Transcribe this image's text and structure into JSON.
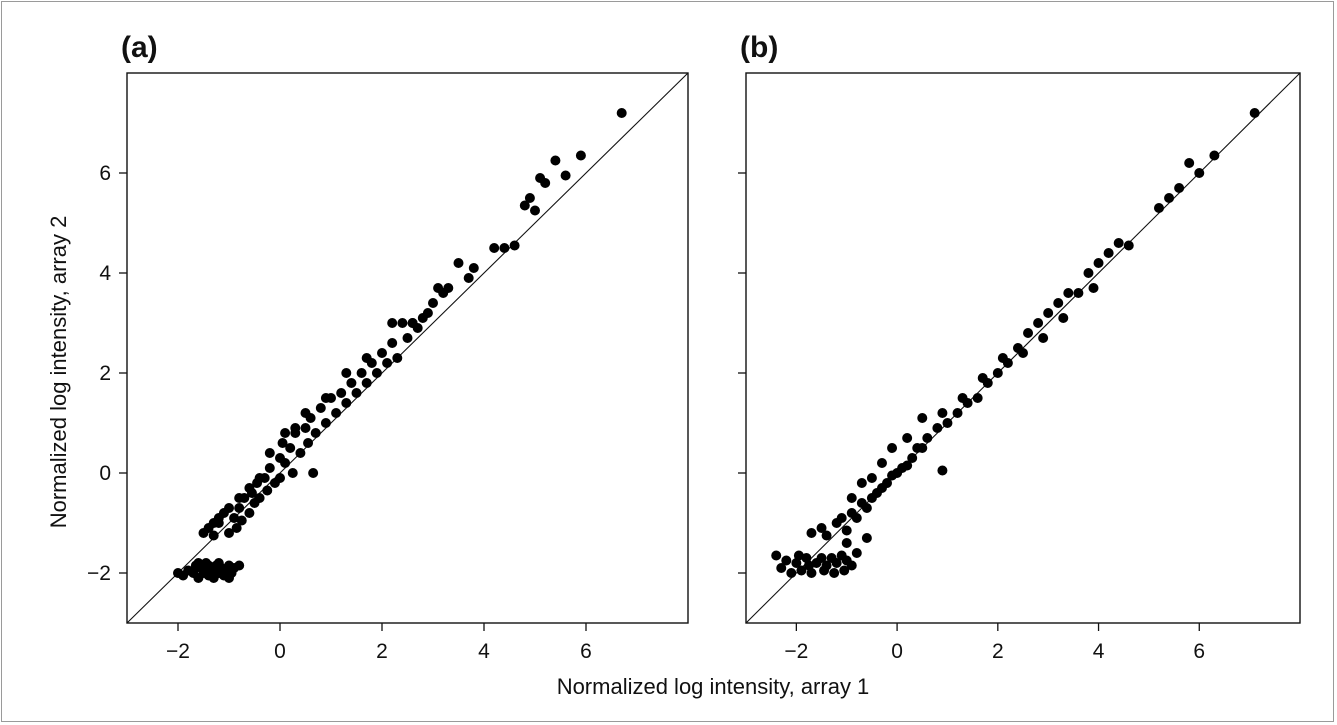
{
  "figure": {
    "xlabel": "Normalized log intensity, array 1",
    "ylabel": "Normalized log intensity, array 2"
  },
  "chart_data": [
    {
      "type": "scatter",
      "panel_label": "(a)",
      "xlim": [
        -3,
        8
      ],
      "ylim": [
        -3,
        8
      ],
      "xticks": [
        -2,
        0,
        2,
        4,
        6
      ],
      "yticks": [
        -2,
        0,
        2,
        4,
        6
      ],
      "xtick_labels": [
        "−2",
        "0",
        "2",
        "4",
        "6"
      ],
      "ytick_labels": [
        "−2",
        "0",
        "2",
        "4",
        "6"
      ],
      "show_x_tick_labels": true,
      "show_y_tick_labels": true,
      "identity_line": true,
      "grid": false,
      "points": [
        [
          -2.0,
          -2.0
        ],
        [
          -1.9,
          -2.05
        ],
        [
          -1.8,
          -1.95
        ],
        [
          -1.7,
          -2.0
        ],
        [
          -1.65,
          -1.85
        ],
        [
          -1.6,
          -2.1
        ],
        [
          -1.55,
          -1.9
        ],
        [
          -1.5,
          -2.0
        ],
        [
          -1.45,
          -1.8
        ],
        [
          -1.4,
          -2.05
        ],
        [
          -1.35,
          -1.95
        ],
        [
          -1.3,
          -2.1
        ],
        [
          -1.25,
          -1.85
        ],
        [
          -1.2,
          -2.0
        ],
        [
          -1.15,
          -1.9
        ],
        [
          -1.1,
          -2.05
        ],
        [
          -1.05,
          -1.95
        ],
        [
          -1.0,
          -1.85
        ],
        [
          -0.95,
          -2.0
        ],
        [
          -0.9,
          -1.9
        ],
        [
          -0.8,
          -1.85
        ],
        [
          -1.6,
          -1.8
        ],
        [
          -1.4,
          -1.85
        ],
        [
          -1.2,
          -1.8
        ],
        [
          -1.0,
          -2.1
        ],
        [
          -1.5,
          -1.2
        ],
        [
          -1.4,
          -1.1
        ],
        [
          -1.3,
          -1.25
        ],
        [
          -1.2,
          -1.0
        ],
        [
          -1.1,
          -0.8
        ],
        [
          -1.0,
          -1.2
        ],
        [
          -0.9,
          -0.9
        ],
        [
          -0.85,
          -1.1
        ],
        [
          -0.8,
          -0.7
        ],
        [
          -0.75,
          -0.95
        ],
        [
          -0.7,
          -0.5
        ],
        [
          -0.6,
          -0.8
        ],
        [
          -0.55,
          -0.4
        ],
        [
          -0.5,
          -0.6
        ],
        [
          -0.45,
          -0.2
        ],
        [
          -0.4,
          -0.5
        ],
        [
          -0.3,
          -0.1
        ],
        [
          -0.25,
          -0.35
        ],
        [
          -0.2,
          0.1
        ],
        [
          -0.1,
          -0.2
        ],
        [
          0.0,
          0.3
        ],
        [
          0.0,
          -0.1
        ],
        [
          0.05,
          0.6
        ],
        [
          0.1,
          0.2
        ],
        [
          0.2,
          0.5
        ],
        [
          0.25,
          0.0
        ],
        [
          0.3,
          0.8
        ],
        [
          0.4,
          0.4
        ],
        [
          0.5,
          0.9
        ],
        [
          0.55,
          0.6
        ],
        [
          0.6,
          1.1
        ],
        [
          0.65,
          0.0
        ],
        [
          0.7,
          0.8
        ],
        [
          0.8,
          1.3
        ],
        [
          0.9,
          1.0
        ],
        [
          1.0,
          1.5
        ],
        [
          1.1,
          1.2
        ],
        [
          1.2,
          1.6
        ],
        [
          1.3,
          1.4
        ],
        [
          1.4,
          1.8
        ],
        [
          1.5,
          1.6
        ],
        [
          1.6,
          2.0
        ],
        [
          1.7,
          1.8
        ],
        [
          1.8,
          2.2
        ],
        [
          1.9,
          2.0
        ],
        [
          2.0,
          2.4
        ],
        [
          2.1,
          2.2
        ],
        [
          2.2,
          2.6
        ],
        [
          2.3,
          2.3
        ],
        [
          2.4,
          3.0
        ],
        [
          2.5,
          2.7
        ],
        [
          2.6,
          3.0
        ],
        [
          2.7,
          2.9
        ],
        [
          2.8,
          3.1
        ],
        [
          2.9,
          3.2
        ],
        [
          3.0,
          3.4
        ],
        [
          3.2,
          3.6
        ],
        [
          3.3,
          3.7
        ],
        [
          3.5,
          4.2
        ],
        [
          3.7,
          3.9
        ],
        [
          3.8,
          4.1
        ],
        [
          4.2,
          4.5
        ],
        [
          4.4,
          4.5
        ],
        [
          4.6,
          4.55
        ],
        [
          4.8,
          5.35
        ],
        [
          4.9,
          5.5
        ],
        [
          5.0,
          5.25
        ],
        [
          5.1,
          5.9
        ],
        [
          5.2,
          5.8
        ],
        [
          5.4,
          6.25
        ],
        [
          5.6,
          5.95
        ],
        [
          5.9,
          6.35
        ],
        [
          6.7,
          7.2
        ],
        [
          -1.3,
          -1.0
        ],
        [
          -1.2,
          -0.9
        ],
        [
          -1.0,
          -0.7
        ],
        [
          -0.8,
          -0.5
        ],
        [
          -0.6,
          -0.3
        ],
        [
          -0.4,
          -0.1
        ],
        [
          -0.2,
          0.4
        ],
        [
          0.1,
          0.8
        ],
        [
          0.3,
          0.9
        ],
        [
          0.5,
          1.2
        ],
        [
          0.9,
          1.5
        ],
        [
          1.3,
          2.0
        ],
        [
          1.7,
          2.3
        ],
        [
          2.2,
          3.0
        ],
        [
          2.6,
          3.0
        ],
        [
          3.1,
          3.7
        ]
      ]
    },
    {
      "type": "scatter",
      "panel_label": "(b)",
      "xlim": [
        -3,
        8
      ],
      "ylim": [
        -3,
        8
      ],
      "xticks": [
        -2,
        0,
        2,
        4,
        6
      ],
      "yticks": [
        -2,
        0,
        2,
        4,
        6
      ],
      "xtick_labels": [
        "−2",
        "0",
        "2",
        "4",
        "6"
      ],
      "ytick_labels": [],
      "show_x_tick_labels": true,
      "show_y_tick_labels": false,
      "identity_line": true,
      "grid": false,
      "points": [
        [
          -2.4,
          -1.65
        ],
        [
          -2.3,
          -1.9
        ],
        [
          -2.2,
          -1.75
        ],
        [
          -2.1,
          -2.0
        ],
        [
          -2.0,
          -1.8
        ],
        [
          -1.95,
          -1.65
        ],
        [
          -1.9,
          -1.95
        ],
        [
          -1.8,
          -1.7
        ],
        [
          -1.75,
          -1.85
        ],
        [
          -1.7,
          -2.0
        ],
        [
          -1.6,
          -1.8
        ],
        [
          -1.5,
          -1.7
        ],
        [
          -1.45,
          -1.95
        ],
        [
          -1.4,
          -1.85
        ],
        [
          -1.3,
          -1.7
        ],
        [
          -1.25,
          -2.0
        ],
        [
          -1.2,
          -1.8
        ],
        [
          -1.1,
          -1.65
        ],
        [
          -1.05,
          -1.95
        ],
        [
          -1.0,
          -1.75
        ],
        [
          -0.9,
          -1.85
        ],
        [
          -0.8,
          -1.6
        ],
        [
          -1.7,
          -1.2
        ],
        [
          -1.5,
          -1.1
        ],
        [
          -1.4,
          -1.25
        ],
        [
          -1.2,
          -1.0
        ],
        [
          -1.1,
          -0.9
        ],
        [
          -1.0,
          -1.15
        ],
        [
          -0.9,
          -0.8
        ],
        [
          -0.8,
          -0.9
        ],
        [
          -0.7,
          -0.6
        ],
        [
          -0.6,
          -0.7
        ],
        [
          -0.5,
          -0.5
        ],
        [
          -0.4,
          -0.4
        ],
        [
          -0.3,
          -0.3
        ],
        [
          -0.2,
          -0.2
        ],
        [
          -0.1,
          -0.05
        ],
        [
          0.0,
          0.0
        ],
        [
          0.1,
          0.1
        ],
        [
          0.2,
          0.15
        ],
        [
          0.3,
          0.3
        ],
        [
          0.4,
          0.5
        ],
        [
          0.5,
          0.5
        ],
        [
          0.6,
          0.7
        ],
        [
          0.8,
          0.9
        ],
        [
          0.9,
          0.05
        ],
        [
          1.0,
          1.0
        ],
        [
          1.2,
          1.2
        ],
        [
          1.4,
          1.4
        ],
        [
          1.6,
          1.5
        ],
        [
          1.8,
          1.8
        ],
        [
          2.0,
          2.0
        ],
        [
          2.2,
          2.2
        ],
        [
          2.4,
          2.5
        ],
        [
          2.6,
          2.8
        ],
        [
          2.8,
          3.0
        ],
        [
          3.0,
          3.2
        ],
        [
          3.2,
          3.4
        ],
        [
          3.4,
          3.6
        ],
        [
          3.6,
          3.6
        ],
        [
          3.8,
          4.0
        ],
        [
          3.9,
          3.7
        ],
        [
          4.0,
          4.2
        ],
        [
          4.2,
          4.4
        ],
        [
          4.4,
          4.6
        ],
        [
          4.6,
          4.55
        ],
        [
          5.2,
          5.3
        ],
        [
          5.4,
          5.5
        ],
        [
          5.6,
          5.7
        ],
        [
          5.8,
          6.2
        ],
        [
          6.0,
          6.0
        ],
        [
          6.3,
          6.35
        ],
        [
          7.1,
          7.2
        ],
        [
          -0.9,
          -0.5
        ],
        [
          -0.7,
          -0.2
        ],
        [
          -0.5,
          -0.1
        ],
        [
          -0.3,
          0.2
        ],
        [
          -0.1,
          0.5
        ],
        [
          0.2,
          0.7
        ],
        [
          0.5,
          1.1
        ],
        [
          0.9,
          1.2
        ],
        [
          1.3,
          1.5
        ],
        [
          1.7,
          1.9
        ],
        [
          2.1,
          2.3
        ],
        [
          2.5,
          2.4
        ],
        [
          2.9,
          2.7
        ],
        [
          3.3,
          3.1
        ],
        [
          -1.0,
          -1.4
        ],
        [
          -0.6,
          -1.3
        ]
      ]
    }
  ]
}
